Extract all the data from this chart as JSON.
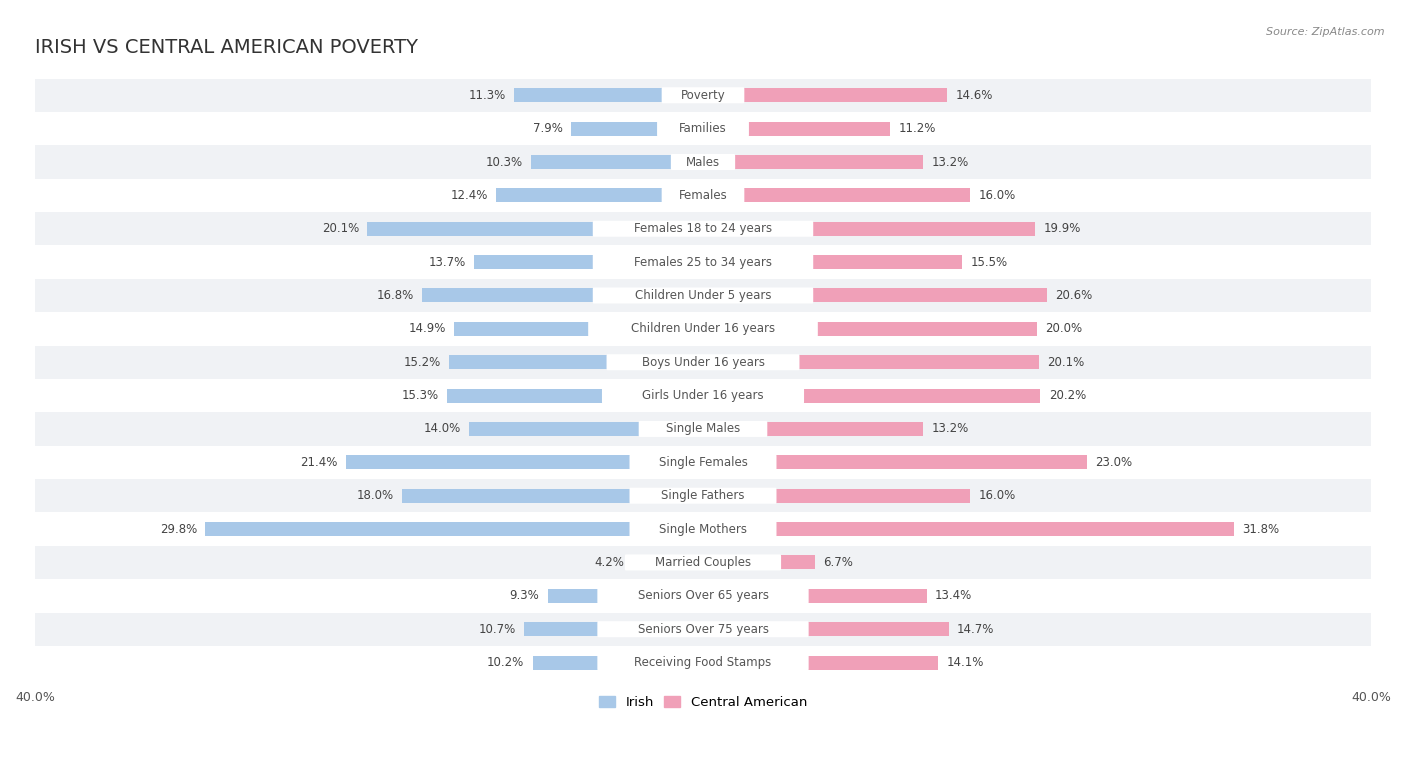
{
  "title": "IRISH VS CENTRAL AMERICAN POVERTY",
  "source": "Source: ZipAtlas.com",
  "categories": [
    "Poverty",
    "Families",
    "Males",
    "Females",
    "Females 18 to 24 years",
    "Females 25 to 34 years",
    "Children Under 5 years",
    "Children Under 16 years",
    "Boys Under 16 years",
    "Girls Under 16 years",
    "Single Males",
    "Single Females",
    "Single Fathers",
    "Single Mothers",
    "Married Couples",
    "Seniors Over 65 years",
    "Seniors Over 75 years",
    "Receiving Food Stamps"
  ],
  "irish": [
    11.3,
    7.9,
    10.3,
    12.4,
    20.1,
    13.7,
    16.8,
    14.9,
    15.2,
    15.3,
    14.0,
    21.4,
    18.0,
    29.8,
    4.2,
    9.3,
    10.7,
    10.2
  ],
  "central_american": [
    14.6,
    11.2,
    13.2,
    16.0,
    19.9,
    15.5,
    20.6,
    20.0,
    20.1,
    20.2,
    13.2,
    23.0,
    16.0,
    31.8,
    6.7,
    13.4,
    14.7,
    14.1
  ],
  "irish_color": "#a8c8e8",
  "central_american_color": "#f0a0b8",
  "background_color": "#ffffff",
  "row_alt_color": "#f0f2f5",
  "row_main_color": "#ffffff",
  "axis_max": 40.0,
  "bar_height": 0.42,
  "title_fontsize": 14,
  "label_fontsize": 8.5,
  "value_fontsize": 8.5,
  "tick_fontsize": 9
}
